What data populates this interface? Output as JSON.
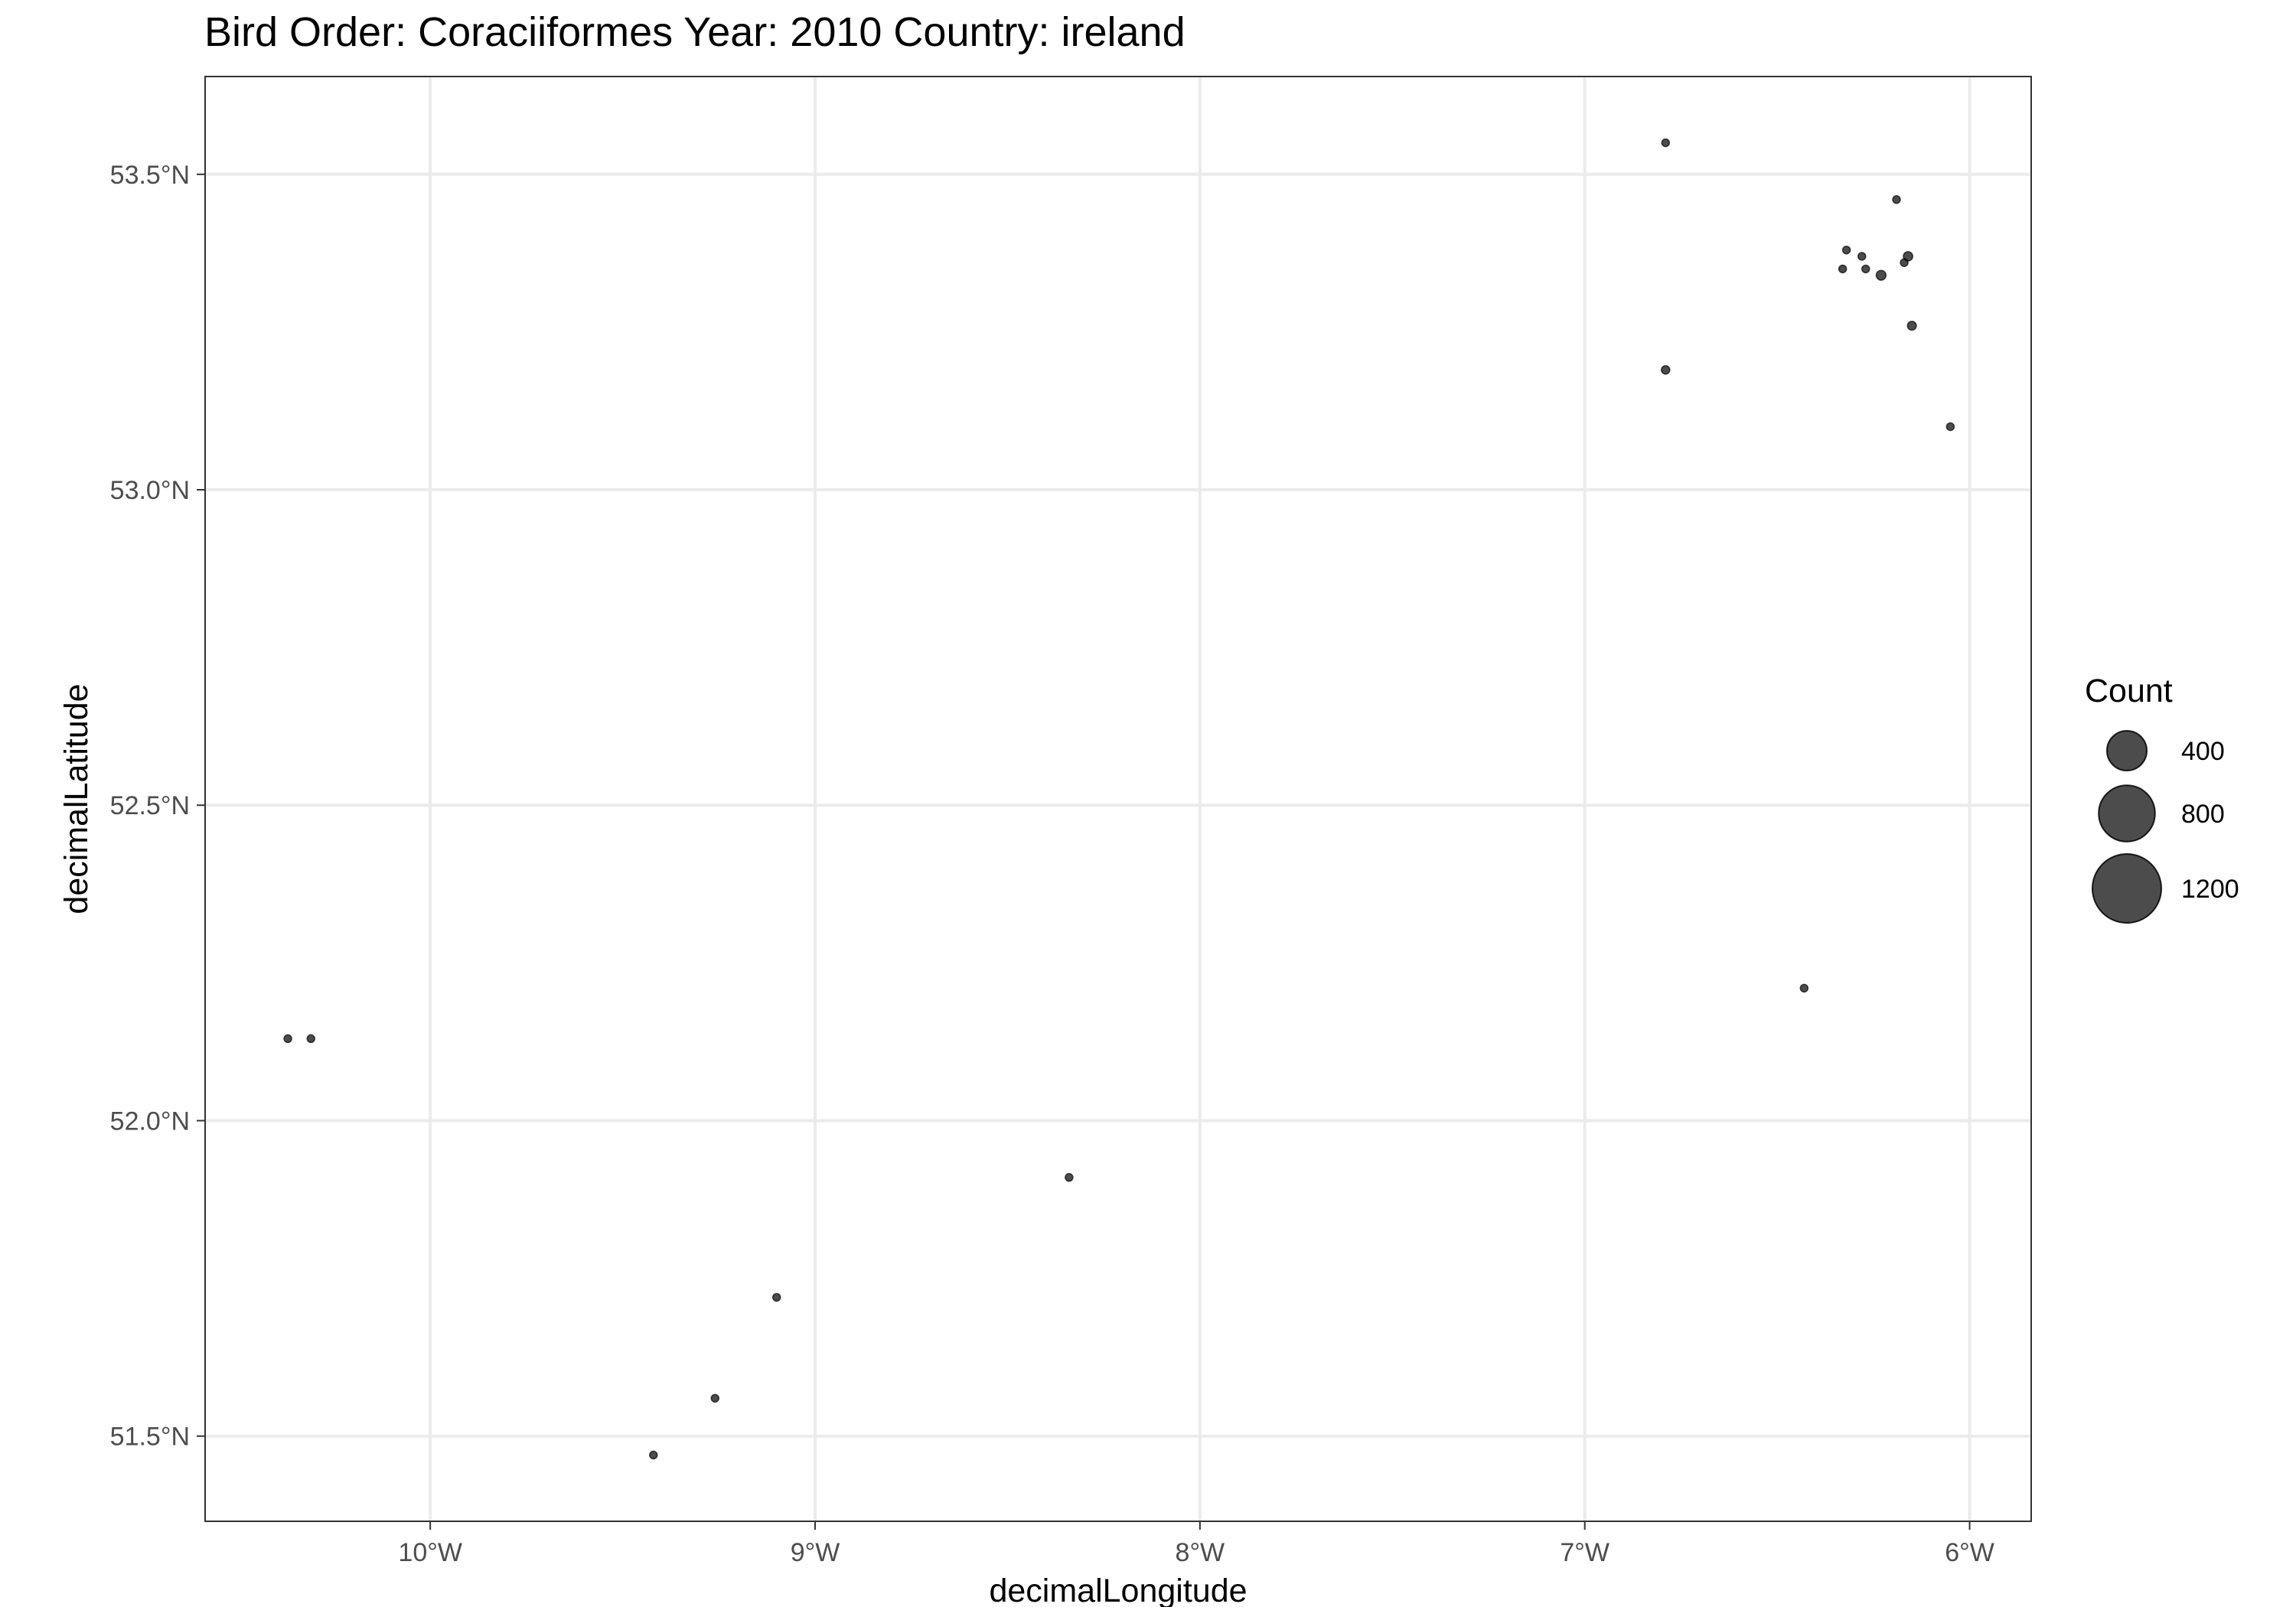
{
  "chart_data": {
    "type": "scatter",
    "title": "Bird Order: Coraciiformes Year: 2010 Country: ireland",
    "xlabel": "decimalLongitude",
    "ylabel": "decimalLatitude",
    "xlim": [
      -10.585,
      -5.84
    ],
    "ylim": [
      51.365,
      53.655
    ],
    "x_ticks": [
      {
        "value": -10,
        "label": "10°W"
      },
      {
        "value": -9,
        "label": "9°W"
      },
      {
        "value": -8,
        "label": "8°W"
      },
      {
        "value": -7,
        "label": "7°W"
      },
      {
        "value": -6,
        "label": "6°W"
      }
    ],
    "y_ticks": [
      {
        "value": 51.5,
        "label": "51.5°N"
      },
      {
        "value": 52.0,
        "label": "52.0°N"
      },
      {
        "value": 52.5,
        "label": "52.5°N"
      },
      {
        "value": 53.0,
        "label": "53.0°N"
      },
      {
        "value": 53.5,
        "label": "53.5°N"
      }
    ],
    "grid": true,
    "size_legend": {
      "title": "Count",
      "position": "right",
      "entries": [
        {
          "value": 400,
          "label": "400"
        },
        {
          "value": 800,
          "label": "800"
        },
        {
          "value": 1200,
          "label": "1200"
        }
      ]
    },
    "points": [
      {
        "x": -6.79,
        "y": 53.55,
        "count": 8
      },
      {
        "x": -6.19,
        "y": 53.46,
        "count": 8
      },
      {
        "x": -6.32,
        "y": 53.38,
        "count": 10
      },
      {
        "x": -6.28,
        "y": 53.37,
        "count": 12
      },
      {
        "x": -6.16,
        "y": 53.37,
        "count": 22
      },
      {
        "x": -6.17,
        "y": 53.36,
        "count": 14
      },
      {
        "x": -6.33,
        "y": 53.35,
        "count": 8
      },
      {
        "x": -6.27,
        "y": 53.35,
        "count": 10
      },
      {
        "x": -6.23,
        "y": 53.34,
        "count": 24
      },
      {
        "x": -6.15,
        "y": 53.26,
        "count": 20
      },
      {
        "x": -6.79,
        "y": 53.19,
        "count": 18
      },
      {
        "x": -6.05,
        "y": 53.1,
        "count": 14
      },
      {
        "x": -6.43,
        "y": 52.21,
        "count": 8
      },
      {
        "x": -10.37,
        "y": 52.13,
        "count": 8
      },
      {
        "x": -10.31,
        "y": 52.13,
        "count": 14
      },
      {
        "x": -8.34,
        "y": 51.91,
        "count": 10
      },
      {
        "x": -9.1,
        "y": 51.72,
        "count": 8
      },
      {
        "x": -9.26,
        "y": 51.56,
        "count": 8
      },
      {
        "x": -9.42,
        "y": 51.47,
        "count": 8
      }
    ]
  }
}
